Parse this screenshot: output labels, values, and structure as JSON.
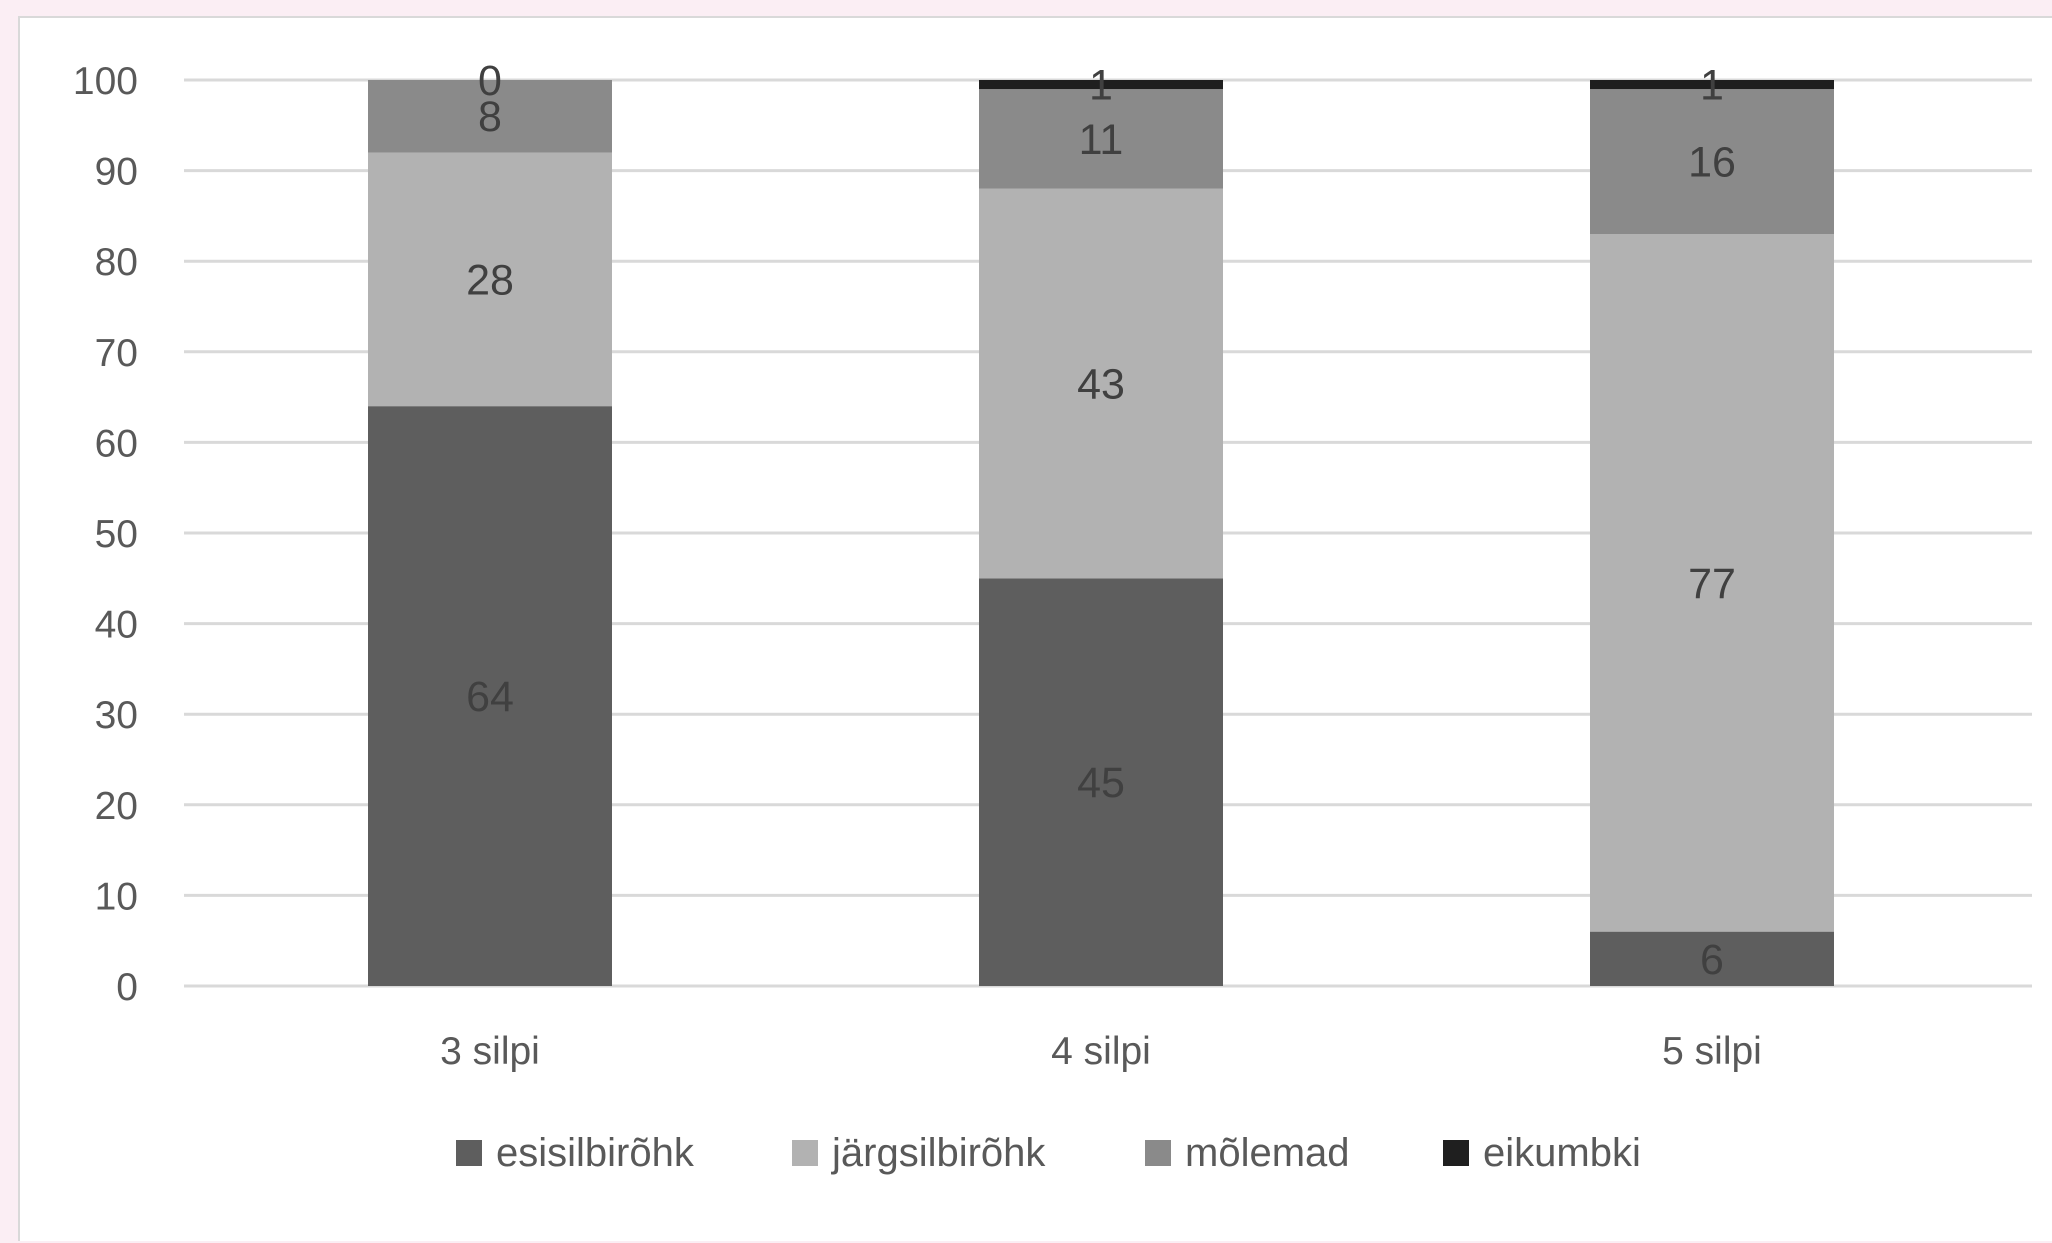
{
  "chart_data": {
    "type": "bar",
    "stacked": true,
    "categories": [
      "3 silpi",
      "4 silpi",
      "5 silpi"
    ],
    "series": [
      {
        "name": "esisilbirõhk",
        "values": [
          64,
          45,
          6
        ],
        "color": "#5e5e5e"
      },
      {
        "name": "järgsilbirõhk",
        "values": [
          28,
          43,
          77
        ],
        "color": "#b2b2b2"
      },
      {
        "name": "mõlemad",
        "values": [
          8,
          11,
          16
        ],
        "color": "#8a8a8a"
      },
      {
        "name": "eikumbki",
        "values": [
          0,
          1,
          1
        ],
        "color": "#1f1f1f"
      }
    ],
    "ylim": [
      0,
      100
    ],
    "yticks": [
      0,
      10,
      20,
      30,
      40,
      50,
      60,
      70,
      80,
      90,
      100
    ],
    "grid": true,
    "legend_position": "bottom",
    "title": "",
    "xlabel": "",
    "ylabel": ""
  },
  "colors": {
    "background": "#fbeef4",
    "plot_background": "#ffffff",
    "gridline": "#d9d9d9",
    "text": "#595959"
  }
}
